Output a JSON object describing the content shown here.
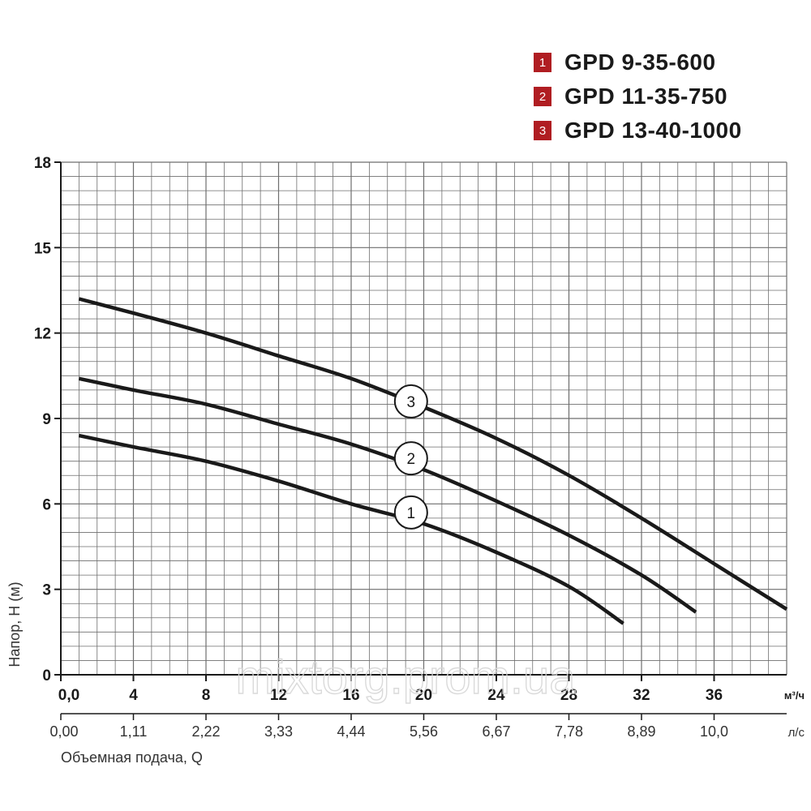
{
  "chart_data": {
    "type": "line",
    "ylabel": "Напор, Н (м)",
    "xlabel": "Объемная подача, Q",
    "x_unit_primary": "м³/ч",
    "x_unit_secondary": "л/с",
    "xlim": [
      0,
      40
    ],
    "ylim": [
      0,
      18
    ],
    "y_ticks": [
      "0",
      "3",
      "6",
      "9",
      "12",
      "15",
      "18"
    ],
    "x_ticks_primary": [
      "0,0",
      "4",
      "8",
      "12",
      "16",
      "20",
      "24",
      "28",
      "32",
      "36"
    ],
    "x_ticks_secondary": [
      "0,00",
      "1,11",
      "2,22",
      "3,33",
      "4,44",
      "5,56",
      "6,67",
      "7,78",
      "8,89",
      "10,0"
    ],
    "grid": true,
    "legend_position": "top-right",
    "series": [
      {
        "name": "GPD 9-35-600",
        "marker": "1",
        "color": "#1a1a1a",
        "points": [
          [
            1,
            8.4
          ],
          [
            4,
            8.0
          ],
          [
            8,
            7.5
          ],
          [
            12,
            6.8
          ],
          [
            16,
            6.0
          ],
          [
            20,
            5.3
          ],
          [
            24,
            4.3
          ],
          [
            28,
            3.1
          ],
          [
            31,
            1.8
          ]
        ]
      },
      {
        "name": "GPD 11-35-750",
        "marker": "2",
        "color": "#1a1a1a",
        "points": [
          [
            1,
            10.4
          ],
          [
            4,
            10.0
          ],
          [
            8,
            9.5
          ],
          [
            12,
            8.8
          ],
          [
            16,
            8.1
          ],
          [
            20,
            7.2
          ],
          [
            24,
            6.1
          ],
          [
            28,
            4.9
          ],
          [
            32,
            3.5
          ],
          [
            35,
            2.2
          ]
        ]
      },
      {
        "name": "GPD 13-40-1000",
        "marker": "3",
        "color": "#1a1a1a",
        "points": [
          [
            1,
            13.2
          ],
          [
            4,
            12.7
          ],
          [
            8,
            12.0
          ],
          [
            12,
            11.2
          ],
          [
            16,
            10.4
          ],
          [
            20,
            9.4
          ],
          [
            24,
            8.3
          ],
          [
            28,
            7.0
          ],
          [
            32,
            5.5
          ],
          [
            36,
            3.9
          ],
          [
            40,
            2.3
          ]
        ]
      }
    ],
    "markers": [
      {
        "series": 0,
        "label": "1",
        "x": 19.3,
        "y": 5.7
      },
      {
        "series": 1,
        "label": "2",
        "x": 19.3,
        "y": 7.6
      },
      {
        "series": 2,
        "label": "3",
        "x": 19.3,
        "y": 9.6
      }
    ]
  },
  "legend": [
    {
      "num": "1",
      "label": "GPD 9-35-600"
    },
    {
      "num": "2",
      "label": "GPD 11-35-750"
    },
    {
      "num": "3",
      "label": "GPD 13-40-1000"
    }
  ],
  "watermark": "mixtorg.prom.ua",
  "colors": {
    "accent": "#b01d22",
    "grid": "#6e6e6e",
    "curve": "#1a1a1a"
  }
}
